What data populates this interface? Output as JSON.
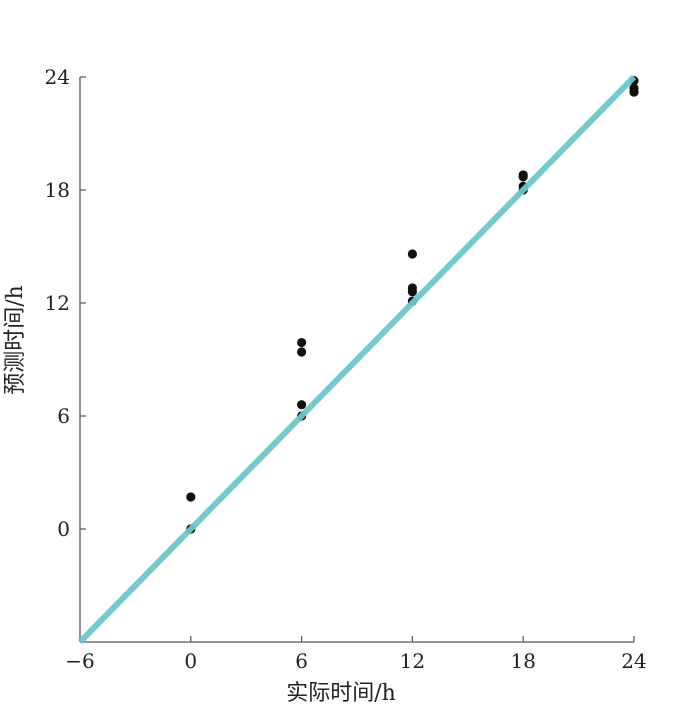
{
  "chart_data": {
    "type": "scatter",
    "title": "",
    "xlabel": "实际时间/h",
    "ylabel": "预测时间/h",
    "xlim": [
      -6,
      24
    ],
    "ylim": [
      -6,
      24
    ],
    "xticks": [
      -6,
      0,
      6,
      12,
      18,
      24
    ],
    "yticks": [
      0,
      6,
      12,
      18,
      24
    ],
    "xtick_labels": [
      "−6",
      "0",
      "6",
      "12",
      "18",
      "24"
    ],
    "ytick_labels": [
      "0",
      "6",
      "12",
      "18",
      "24"
    ],
    "grid": false,
    "series": [
      {
        "kind": "points",
        "points": [
          {
            "x": 0,
            "y": 1.7
          },
          {
            "x": 0,
            "y": 0.0
          },
          {
            "x": 6,
            "y": 9.9
          },
          {
            "x": 6,
            "y": 9.4
          },
          {
            "x": 6,
            "y": 6.6
          },
          {
            "x": 6,
            "y": 6.0
          },
          {
            "x": 12,
            "y": 14.6
          },
          {
            "x": 12,
            "y": 12.8
          },
          {
            "x": 12,
            "y": 12.6
          },
          {
            "x": 12,
            "y": 12.1
          },
          {
            "x": 18,
            "y": 18.8
          },
          {
            "x": 18,
            "y": 18.7
          },
          {
            "x": 18,
            "y": 18.2
          },
          {
            "x": 18,
            "y": 18.0
          },
          {
            "x": 24,
            "y": 23.8
          },
          {
            "x": 24,
            "y": 23.4
          },
          {
            "x": 24,
            "y": 23.2
          }
        ]
      },
      {
        "kind": "line",
        "x": [
          -6,
          24
        ],
        "y": [
          -6,
          24
        ]
      }
    ],
    "colors": {
      "points": "#111111",
      "line": "#6ec6cf",
      "axis": "#555555"
    }
  }
}
